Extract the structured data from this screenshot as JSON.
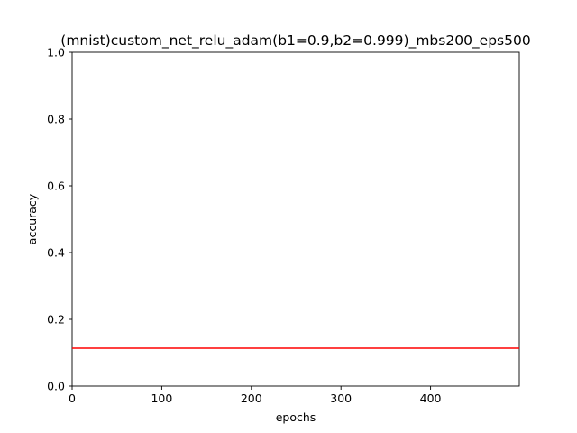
{
  "chart_data": {
    "type": "line",
    "title": "(mnist)custom_net_relu_adam(b1=0.9,b2=0.999)_mbs200_eps500",
    "xlabel": "epochs",
    "ylabel": "accuracy",
    "xlim": [
      0,
      499
    ],
    "ylim": [
      0.0,
      1.0
    ],
    "xticks": [
      "0",
      "100",
      "200",
      "300",
      "400"
    ],
    "xtick_values": [
      0,
      100,
      200,
      300,
      400
    ],
    "yticks": [
      "0.0",
      "0.2",
      "0.4",
      "0.6",
      "0.8",
      "1.0"
    ],
    "ytick_values": [
      0.0,
      0.2,
      0.4,
      0.6,
      0.8,
      1.0
    ],
    "grid": false,
    "series": [
      {
        "color": "#ff0000",
        "x": [
          0,
          499
        ],
        "values": [
          0.1135,
          0.1135
        ]
      }
    ]
  }
}
